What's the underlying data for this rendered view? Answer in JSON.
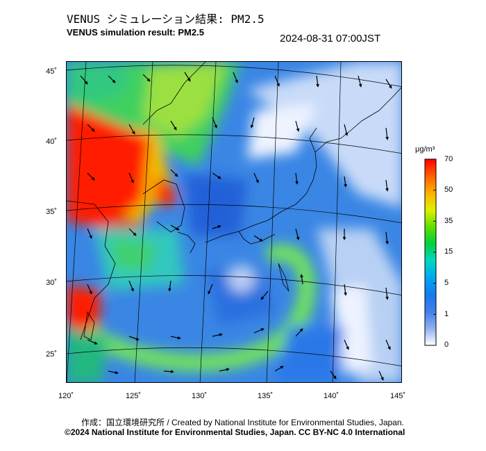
{
  "title_jp": "VENUS シミュレーション結果: PM2.5",
  "title_en": "VENUS simulation result: PM2.5",
  "timestamp": "2024-08-31 07:00JST",
  "map": {
    "lat_ticks": [
      "45˚",
      "40˚",
      "35˚",
      "30˚",
      "25˚"
    ],
    "lon_ticks": [
      "120˚",
      "125˚",
      "130˚",
      "135˚",
      "140˚",
      "145˚"
    ]
  },
  "colorbar": {
    "unit": "μg/m³",
    "ticks": [
      "70",
      "50",
      "35",
      "15",
      "5",
      "1",
      "0"
    ],
    "colors": [
      "#ff0000",
      "#ff6000",
      "#ffb000",
      "#e0f000",
      "#60e000",
      "#00d040",
      "#00d8c0",
      "#00a8f0",
      "#1878f0",
      "#4080e8",
      "#90b0f0",
      "#ffffff"
    ]
  },
  "footer": {
    "credit": "作成：国立環境研究所 / Created by National Institute for Environmental Studies, Japan.",
    "copyright": "©2024 National Institute for Environmental Studies, Japan. CC BY-NC 4.0 International"
  }
}
